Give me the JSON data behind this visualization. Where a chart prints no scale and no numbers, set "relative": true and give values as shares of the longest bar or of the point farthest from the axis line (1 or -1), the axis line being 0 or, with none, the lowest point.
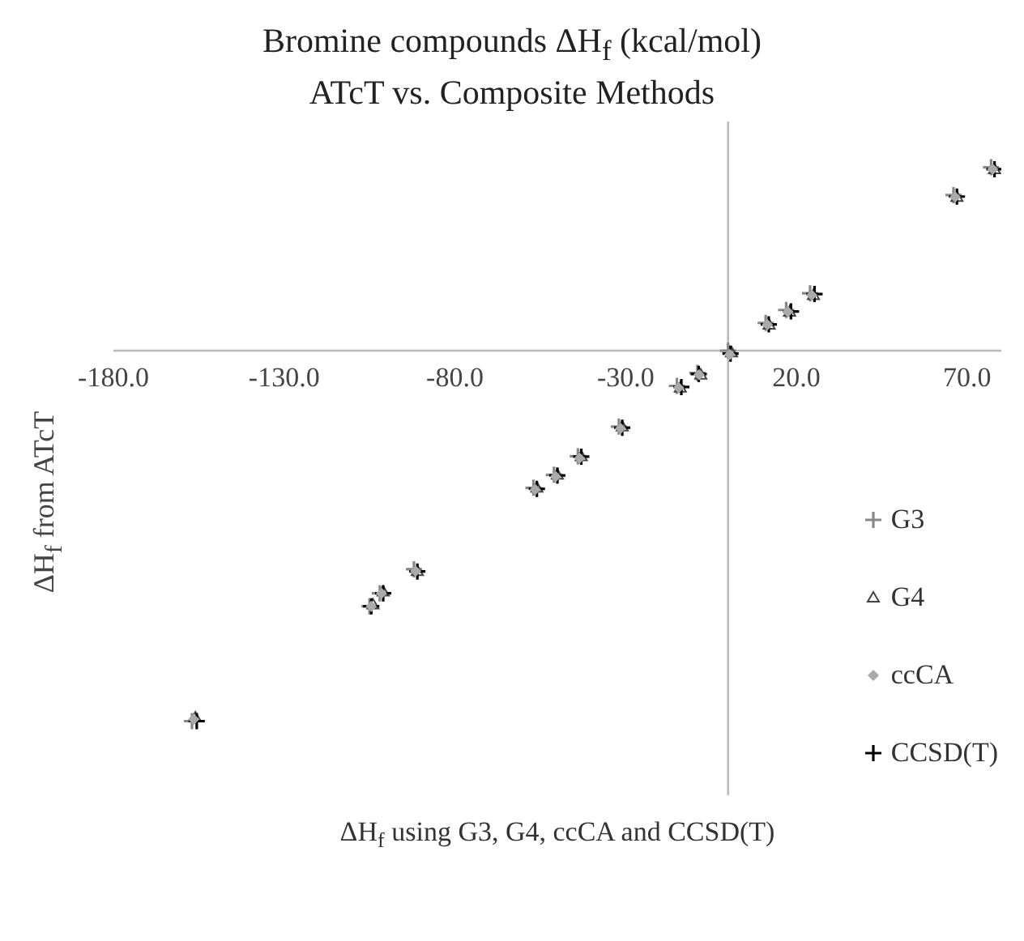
{
  "chart_data": {
    "type": "scatter",
    "title": "Bromine compounds ΔH$_{f}$ (kcal/mol)",
    "subtitle": "ATcT vs. Composite Methods",
    "xlabel": "ΔH$_{f}$ using G3, G4, ccCA and CCSD(T)",
    "ylabel": "ΔH$_{f}$ from ATcT",
    "relative": true,
    "xlim": [
      -180,
      80
    ],
    "xticks": [
      {
        "value": -180,
        "label": "-180.0"
      },
      {
        "value": -130,
        "label": "-130.0"
      },
      {
        "value": -80,
        "label": "-80.0"
      },
      {
        "value": -30,
        "label": "-30.0"
      },
      {
        "value": 20,
        "label": "20.0"
      },
      {
        "value": 70,
        "label": "70.0"
      }
    ],
    "grid": false,
    "legend": "bottom right",
    "series": [
      {
        "name": "G3",
        "color": "#888888",
        "marker": "cross",
        "x": [
          -157,
          -105,
          -102,
          -92,
          -57,
          -51,
          -44,
          -32,
          -15,
          -9,
          0,
          11,
          17,
          24,
          66,
          77
        ],
        "values": [
          -1,
          -0.69,
          -0.655,
          -0.59,
          -0.37,
          -0.335,
          -0.285,
          -0.205,
          -0.095,
          -0.06,
          0,
          0.075,
          0.11,
          0.155,
          0.42,
          0.495
        ]
      },
      {
        "name": "G4",
        "color": "#444444",
        "marker": "triangle",
        "x": [
          -156,
          -104,
          -101,
          -91,
          -56,
          -50,
          -43,
          -31,
          -14,
          -8,
          1,
          12,
          18,
          25,
          67,
          78
        ],
        "values": [
          -0.99,
          -0.685,
          -0.65,
          -0.595,
          -0.37,
          -0.335,
          -0.285,
          -0.205,
          -0.1,
          -0.065,
          -0.005,
          0.07,
          0.105,
          0.15,
          0.415,
          0.49
        ]
      },
      {
        "name": "ccCA",
        "color": "#aaaaaa",
        "marker": "diamond",
        "x": [
          -156.5,
          -104.5,
          -101.5,
          -91.5,
          -56.5,
          -50.5,
          -43.5,
          -31.5,
          -14.5,
          -8.5,
          0.5,
          11.5,
          17.5,
          24.5,
          66.5,
          77.5
        ],
        "values": [
          -0.995,
          -0.69,
          -0.655,
          -0.595,
          -0.375,
          -0.34,
          -0.29,
          -0.21,
          -0.1,
          -0.065,
          -0.01,
          0.07,
          0.105,
          0.15,
          0.415,
          0.49
        ]
      },
      {
        "name": "CCSD(T)",
        "color": "#000000",
        "marker": "cross",
        "x": [
          -155.6,
          -104.5,
          -101,
          -91,
          -56,
          -50,
          -43,
          -31,
          -13.7,
          -8.6,
          0.7,
          11.9,
          18.4,
          25.3,
          67,
          78
        ],
        "values": [
          -1,
          -0.69,
          -0.655,
          -0.596,
          -0.373,
          -0.337,
          -0.286,
          -0.208,
          -0.098,
          -0.063,
          -0.008,
          0.071,
          0.106,
          0.153,
          0.416,
          0.49
        ]
      }
    ]
  }
}
